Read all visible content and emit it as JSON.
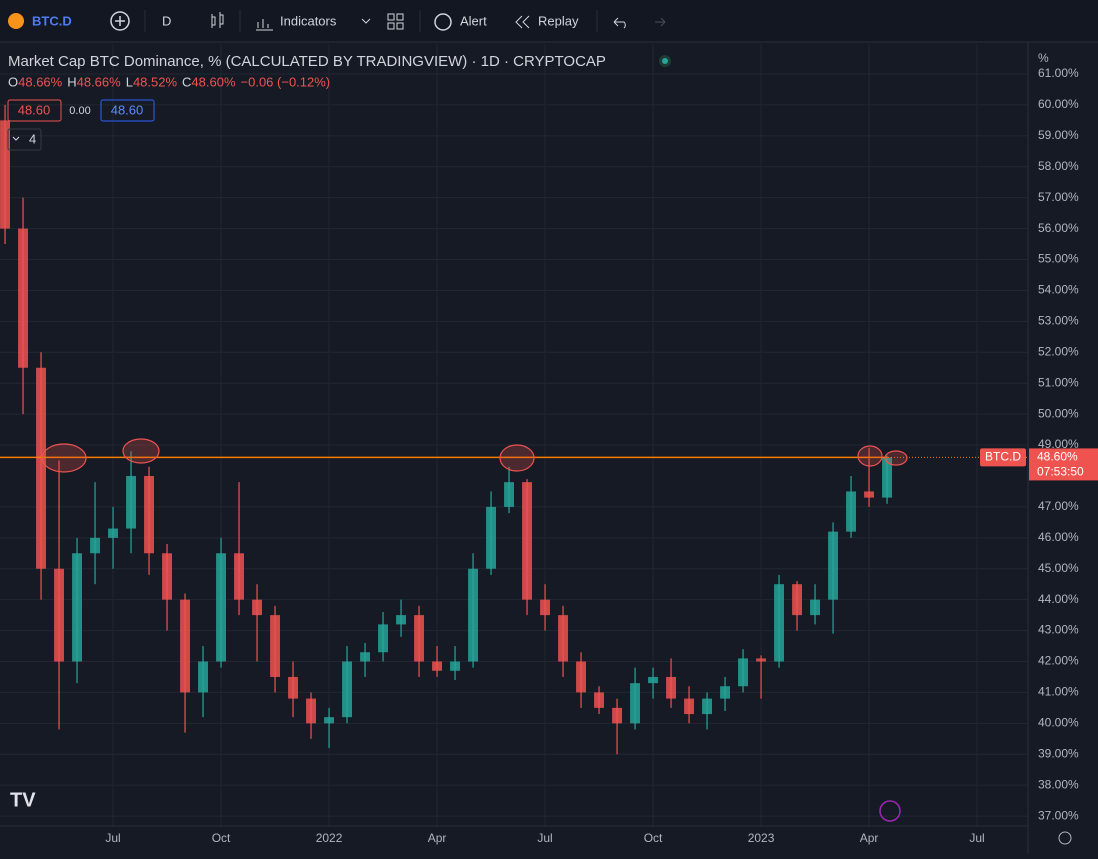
{
  "toolbar": {
    "symbol": "BTC.D",
    "interval": "D",
    "indicators": "Indicators",
    "alert": "Alert",
    "replay": "Replay"
  },
  "legend": {
    "title": "Market Cap BTC Dominance, % (CALCULATED BY TRADINGVIEW) · 1D · CRYPTOCAP",
    "ohlc": [
      {
        "key": "O",
        "text": "48.66%"
      },
      {
        "key": "H",
        "text": "48.66%"
      },
      {
        "key": "L",
        "text": "48.52%"
      },
      {
        "key": "C",
        "text": "48.60%"
      }
    ],
    "change": "−0.06 (−0.12%)",
    "bid": "48.60",
    "spread": "0.00",
    "ask": "48.60",
    "collapsed_count": "4"
  },
  "chart_data": {
    "type": "candlestick",
    "y_unit": "%",
    "open": [
      59.5,
      56,
      51.5,
      45,
      42,
      45.5,
      46,
      46.3,
      48,
      45.5,
      44,
      41,
      42,
      45.5,
      44,
      43.5,
      41.5,
      40.8,
      40,
      40.2,
      42,
      42.3,
      43.2,
      43.5,
      42,
      41.7,
      42,
      45,
      47,
      47.8,
      44,
      43.5,
      42,
      41,
      40.5,
      40,
      41.3,
      41.5,
      40.8,
      40.3,
      40.8,
      41.2,
      42.1,
      42,
      44.5,
      43.5,
      44,
      46.2,
      47.5,
      47.3
    ],
    "high": [
      60,
      57,
      52,
      48.5,
      46,
      47.8,
      47,
      48.8,
      48.3,
      45.8,
      44.2,
      42.5,
      46,
      47.8,
      44.5,
      43.8,
      42,
      41,
      40.5,
      42.5,
      42.6,
      43.6,
      44,
      43.8,
      42.5,
      42.5,
      45.5,
      47.5,
      48.3,
      47.9,
      44.5,
      43.8,
      42.3,
      41.2,
      40.8,
      41.8,
      41.8,
      42.1,
      41.2,
      41,
      41.5,
      42.4,
      42.2,
      44.8,
      44.6,
      44.5,
      46.5,
      48,
      48.9,
      48.66
    ],
    "low": [
      55.5,
      50,
      44,
      39.8,
      41.3,
      44.5,
      45,
      45.5,
      44.8,
      43,
      39.7,
      40.2,
      41.8,
      43.5,
      42,
      41,
      40.2,
      39.5,
      39.2,
      40,
      41.5,
      42,
      42.8,
      41.5,
      41.5,
      41.4,
      41.8,
      44.8,
      46.8,
      43.5,
      43,
      41.5,
      40.5,
      40.3,
      39,
      39.8,
      40.8,
      40.5,
      40,
      39.8,
      40.4,
      41,
      40.8,
      41.8,
      43,
      43.2,
      42.9,
      46,
      47,
      47.1
    ],
    "close": [
      56,
      51.5,
      45,
      42,
      45.5,
      46,
      46.3,
      48,
      45.5,
      44,
      41,
      42,
      45.5,
      44,
      43.5,
      41.5,
      40.8,
      40,
      40.2,
      42,
      42.3,
      43.2,
      43.5,
      42,
      41.7,
      42,
      45,
      47,
      47.8,
      44,
      43.5,
      42,
      41,
      40.5,
      40,
      41.3,
      41.5,
      40.8,
      40.3,
      40.8,
      41.2,
      42.1,
      42,
      44.5,
      43.5,
      44,
      46.2,
      47.5,
      47.3,
      48.6
    ],
    "up_color": "#26a69a",
    "down_color": "#ef5350",
    "xlim": [
      -0.28,
      56.83
    ],
    "xticks": [
      {
        "value": 6,
        "label": "Jul"
      },
      {
        "value": 12,
        "label": "Oct"
      },
      {
        "value": 18,
        "label": "2022"
      },
      {
        "value": 24,
        "label": "Apr"
      },
      {
        "value": 30,
        "label": "Jul"
      },
      {
        "value": 36,
        "label": "Oct"
      },
      {
        "value": 42,
        "label": "2023"
      },
      {
        "value": 48,
        "label": "Apr"
      },
      {
        "value": 54,
        "label": "Jul"
      }
    ],
    "ylim": [
      36.68,
      61.97
    ],
    "yticks": [
      {
        "value": 61,
        "label": "61.00%"
      },
      {
        "value": 60,
        "label": "60.00%"
      },
      {
        "value": 59,
        "label": "59.00%"
      },
      {
        "value": 58,
        "label": "58.00%"
      },
      {
        "value": 57,
        "label": "57.00%"
      },
      {
        "value": 56,
        "label": "56.00%"
      },
      {
        "value": 55,
        "label": "55.00%"
      },
      {
        "value": 54,
        "label": "54.00%"
      },
      {
        "value": 53,
        "label": "53.00%"
      },
      {
        "value": 52,
        "label": "52.00%"
      },
      {
        "value": 51,
        "label": "51.00%"
      },
      {
        "value": 50,
        "label": "50.00%"
      },
      {
        "value": 49,
        "label": "49.00%"
      },
      {
        "value": 47,
        "label": "47.00%"
      },
      {
        "value": 46,
        "label": "46.00%"
      },
      {
        "value": 45,
        "label": "45.00%"
      },
      {
        "value": 44,
        "label": "44.00%"
      },
      {
        "value": 43,
        "label": "43.00%"
      },
      {
        "value": 42,
        "label": "42.00%"
      },
      {
        "value": 41,
        "label": "41.00%"
      },
      {
        "value": 40,
        "label": "40.00%"
      },
      {
        "value": 39,
        "label": "39.00%"
      },
      {
        "value": 38,
        "label": "38.00%"
      },
      {
        "value": 37,
        "label": "37.00%"
      }
    ],
    "grid": true,
    "price_line": {
      "value": 48.6,
      "label": "48.60%",
      "name": "BTC.D",
      "countdown": "07:53:50",
      "color": "#f57c00"
    }
  }
}
